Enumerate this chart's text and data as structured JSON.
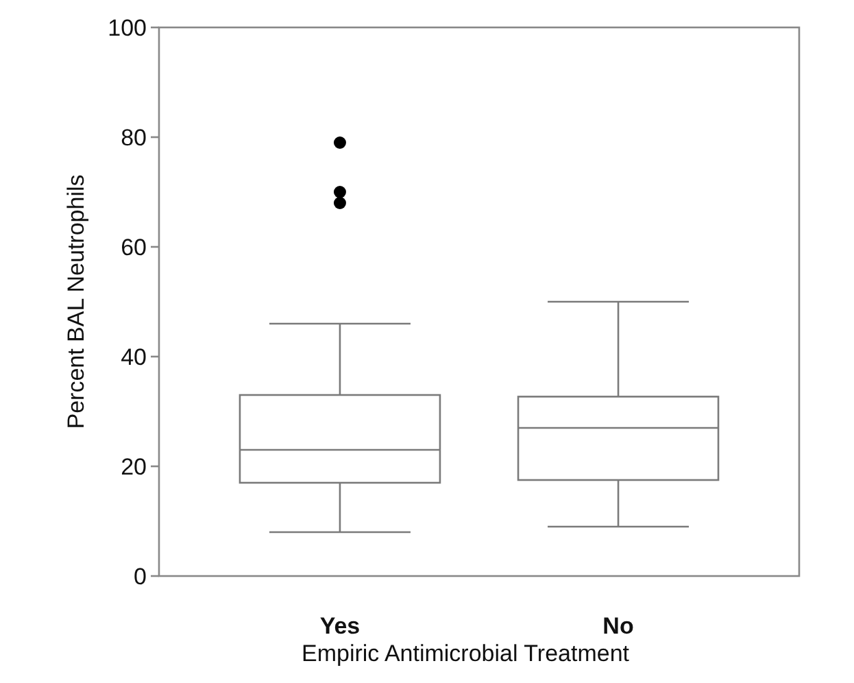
{
  "chart_data": {
    "type": "box",
    "categories": [
      "Yes",
      "No"
    ],
    "xlabel": "Empiric Antimicrobial Treatment",
    "ylabel": "Percent BAL Neutrophils",
    "ylim": [
      0,
      100
    ],
    "yticks": [
      0,
      20,
      40,
      60,
      80,
      100
    ],
    "grid": false,
    "color": "#7a7a7a",
    "boxes": [
      {
        "low": 8,
        "q1": 17,
        "median": 23,
        "q3": 33,
        "high": 46,
        "outliers": [
          79,
          70,
          68
        ]
      },
      {
        "low": 9,
        "q1": 17.5,
        "median": 27,
        "q3": 32.7,
        "high": 50
      }
    ]
  }
}
